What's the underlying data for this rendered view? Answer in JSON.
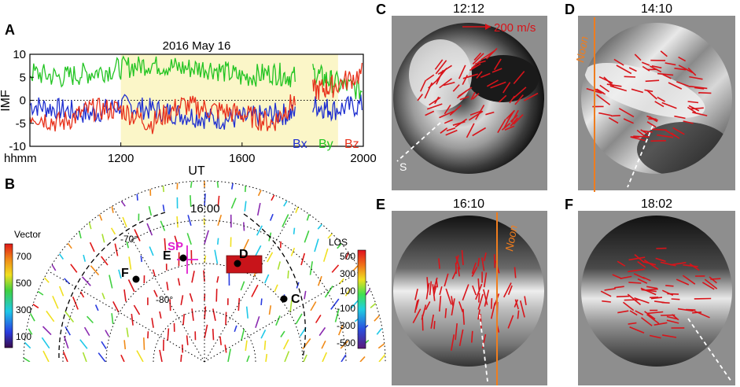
{
  "panels": {
    "A": {
      "letter": "A",
      "title": "2016 May 16",
      "ylabel": "IMF",
      "xlabel": "UT",
      "xaxis_prefix": "hhmm",
      "yticks": [
        "10",
        "5",
        "0",
        "-5",
        "-10"
      ],
      "xticks": [
        "1200",
        "1600",
        "2000"
      ],
      "legend": [
        "Bx",
        "By",
        "Bz"
      ]
    },
    "B": {
      "letter": "B",
      "time": "16:00",
      "lat_labels": [
        "-70°",
        "-80°"
      ],
      "site_labels": [
        "SP",
        "E",
        "F",
        "D",
        "C"
      ],
      "vector_title": "Vector",
      "vector_ticks": [
        "700",
        "500",
        "300",
        "100"
      ],
      "los_title": "LOS",
      "los_ticks": [
        "500",
        "300",
        "100",
        "-100",
        "-300",
        "-500"
      ]
    },
    "C": {
      "letter": "C",
      "time": "12:12",
      "scale_label": "200 m/s",
      "dir_label": "S"
    },
    "D": {
      "letter": "D",
      "time": "14:10",
      "noon_label": "Noon"
    },
    "E": {
      "letter": "E",
      "time": "16:10",
      "noon_label": "Noon"
    },
    "F": {
      "letter": "F",
      "time": "18:02"
    }
  },
  "colors": {
    "bx": "#1f2fd0",
    "by": "#22c422",
    "bz": "#e8321c",
    "highlight": "#fbf6c8",
    "vector_red": "#d8141a",
    "noon_line": "#f07d1e",
    "sp_magenta": "#e020d0"
  },
  "chart_data": [
    {
      "type": "line",
      "title": "2016 May 16",
      "xlabel": "UT",
      "ylabel": "IMF",
      "x_unit": "hhmm",
      "xlim": [
        900,
        2000
      ],
      "ylim": [
        -10,
        10
      ],
      "highlight_range": [
        1200,
        1910
      ],
      "series": [
        {
          "name": "Bx",
          "x": [
            900,
            1000,
            1100,
            1200,
            1300,
            1400,
            1500,
            1600,
            1700,
            1745,
            1820,
            1900,
            2000
          ],
          "values": [
            -1,
            -2,
            -3,
            -1,
            -2,
            -3,
            -4,
            -4,
            -3,
            -3,
            -1,
            -2,
            -1
          ]
        },
        {
          "name": "By",
          "x": [
            900,
            1000,
            1100,
            1200,
            1300,
            1400,
            1500,
            1600,
            1700,
            1745,
            1820,
            1900,
            2000
          ],
          "values": [
            6,
            5,
            6,
            7,
            8,
            7,
            7,
            5,
            6,
            5,
            6,
            4,
            2
          ]
        },
        {
          "name": "Bz",
          "x": [
            900,
            1000,
            1100,
            1200,
            1300,
            1400,
            1500,
            1600,
            1700,
            1745,
            1820,
            1900,
            2000
          ],
          "values": [
            -3,
            -5,
            -2,
            -2,
            -5,
            -1,
            -2,
            -3,
            -5,
            0,
            2,
            3,
            6
          ]
        }
      ]
    }
  ]
}
